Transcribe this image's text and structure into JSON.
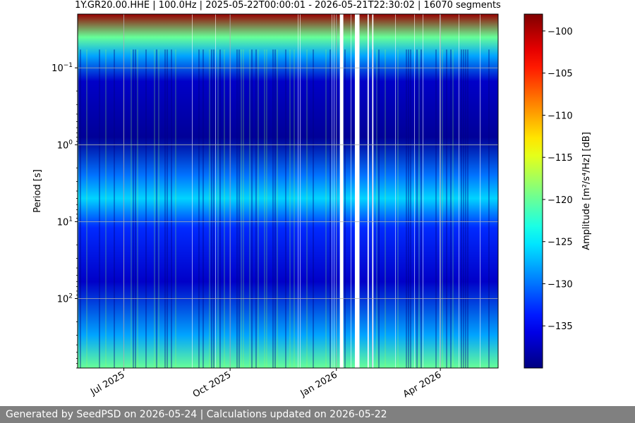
{
  "chart_data": {
    "type": "heatmap",
    "title": "1Y.GR20.00.HHE | 100.0Hz | 2025-05-22T00:00:01 - 2026-05-21T22:30:02 | 16070 segments",
    "xlabel": "",
    "ylabel": "Period [s]",
    "x_range": [
      "2025-05-22",
      "2026-05-21"
    ],
    "x_ticks": [
      {
        "date": "2025-07-01",
        "label": "Jul 2025"
      },
      {
        "date": "2025-10-01",
        "label": "Oct 2025"
      },
      {
        "date": "2026-01-01",
        "label": "Jan 2026"
      },
      {
        "date": "2026-04-01",
        "label": "Apr 2026"
      }
    ],
    "y_scale": "log",
    "y_inverted": true,
    "y_range": [
      0.02,
      800
    ],
    "y_ticks": [
      {
        "value": 0.1,
        "base": "10",
        "exp": "−1"
      },
      {
        "value": 1,
        "base": "10",
        "exp": "0"
      },
      {
        "value": 10,
        "base": "10",
        "exp": "1"
      },
      {
        "value": 100,
        "base": "10",
        "exp": "2"
      }
    ],
    "grid": true,
    "colormap": "jet",
    "colorbar": {
      "label": "Amplitude [m²/s⁴/Hz] [dB]",
      "range": [
        -140,
        -98
      ],
      "ticks": [
        -100,
        -105,
        -110,
        -115,
        -120,
        -125,
        -130,
        -135
      ]
    },
    "data_gaps": [
      [
        "2026-01-04",
        "2026-01-07"
      ],
      [
        "2026-01-17",
        "2026-01-21"
      ],
      [
        "2026-01-28",
        "2026-01-29"
      ],
      [
        "2026-02-01",
        "2026-02-02"
      ]
    ],
    "approx_amplitude_profile_db": [
      {
        "period_s": 0.02,
        "db": -99
      },
      {
        "period_s": 0.04,
        "db": -120
      },
      {
        "period_s": 0.07,
        "db": -128
      },
      {
        "period_s": 0.15,
        "db": -137
      },
      {
        "period_s": 0.8,
        "db": -139
      },
      {
        "period_s": 2.5,
        "db": -130
      },
      {
        "period_s": 5,
        "db": -126
      },
      {
        "period_s": 12,
        "db": -133
      },
      {
        "period_s": 60,
        "db": -137
      },
      {
        "period_s": 300,
        "db": -128
      },
      {
        "period_s": 800,
        "db": -120
      }
    ]
  },
  "footer": {
    "text": "Generated by SeedPSD on 2026-05-24 | Calculations updated on 2026-05-22"
  }
}
